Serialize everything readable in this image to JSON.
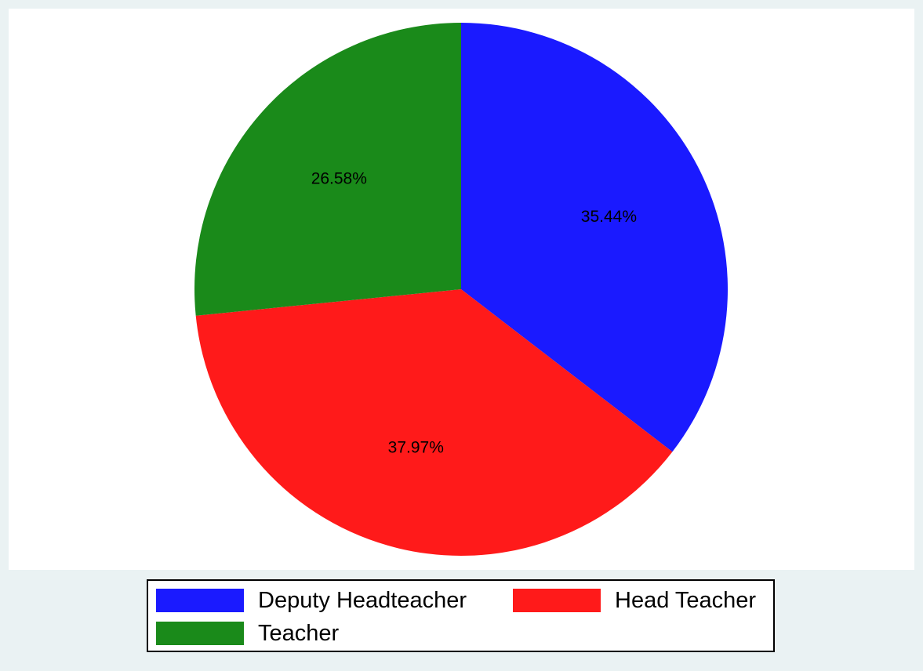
{
  "chart_data": {
    "type": "pie",
    "slices": [
      {
        "label": "Deputy Headteacher",
        "value": 35.44,
        "value_label": "35.44%",
        "color": "#1a1aff"
      },
      {
        "label": "Head Teacher",
        "value": 37.97,
        "value_label": "37.97%",
        "color": "#ff1a1a"
      },
      {
        "label": "Teacher",
        "value": 26.58,
        "value_label": "26.58%",
        "color": "#1a8a1a"
      }
    ],
    "start_angle": "12 o'clock",
    "direction": "clockwise",
    "legend_position": "bottom",
    "legend_columns": 2
  },
  "colors": {
    "background": "#eaf2f3",
    "plot_background": "#ffffff"
  }
}
